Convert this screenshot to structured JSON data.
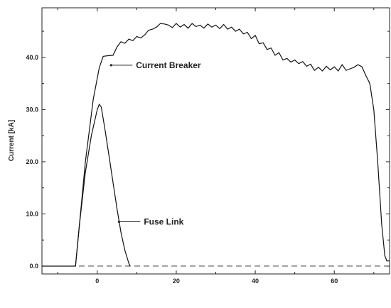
{
  "chart_data": {
    "type": "line",
    "xlabel": "",
    "ylabel": "Current [kA]",
    "xlim": [
      -14,
      74
    ],
    "ylim": [
      -1.5,
      49.5
    ],
    "x_ticks": [
      0,
      20,
      40,
      60
    ],
    "y_ticks": [
      0.0,
      10.0,
      20.0,
      30.0,
      40.0
    ],
    "grid": false,
    "reference_line": {
      "y": 0,
      "style": "dashed"
    },
    "series": [
      {
        "name": "Current Breaker",
        "x": [
          -14,
          -5.5,
          -4.5,
          -3,
          -1,
          0.5,
          1.5,
          2.5,
          4,
          5,
          6,
          7,
          8,
          9,
          10,
          11,
          12,
          13,
          14,
          15,
          16,
          17,
          18,
          19,
          20,
          21,
          22,
          23,
          24,
          25,
          26,
          27,
          28,
          29,
          30,
          31,
          32,
          33,
          34,
          35,
          36,
          37,
          38,
          39,
          40,
          41,
          42,
          43,
          44,
          45,
          46,
          47,
          48,
          49,
          50,
          51,
          52,
          53,
          54,
          55,
          56,
          57,
          58,
          59,
          60,
          61,
          62,
          63,
          64,
          65,
          66,
          67,
          68,
          69,
          70,
          71,
          72,
          72.8,
          73.3,
          74
        ],
        "y": [
          0,
          0,
          8,
          20,
          32,
          38,
          40.2,
          40.3,
          40.4,
          42,
          43,
          42.7,
          43.5,
          43.2,
          44,
          43.7,
          44.3,
          45.2,
          45.4,
          45.8,
          46.5,
          46.4,
          46.2,
          45.7,
          46.5,
          45.8,
          46.3,
          45.6,
          46.5,
          45.9,
          46.2,
          45.6,
          46.4,
          45.8,
          46.2,
          45.5,
          46.3,
          45.4,
          45.8,
          45,
          45.4,
          44.5,
          44.8,
          43.6,
          44.2,
          42.6,
          42.8,
          41.5,
          41.8,
          40.4,
          40.9,
          39.5,
          39.8,
          39.1,
          39.5,
          38.8,
          39.2,
          38.3,
          38.7,
          37.5,
          38.1,
          37.4,
          38.3,
          37.6,
          38.2,
          37.4,
          38.6,
          37.5,
          37.8,
          38.1,
          38.6,
          38.2,
          36.5,
          35,
          30,
          20,
          8,
          2,
          1,
          1
        ],
        "color": "#111111"
      },
      {
        "name": "Fuse Link",
        "x": [
          -5.5,
          -4.5,
          -3,
          -1.5,
          0,
          0.5,
          1,
          2,
          3,
          4,
          5,
          6,
          7,
          8,
          8.3
        ],
        "y": [
          0,
          8,
          18,
          25,
          30,
          31,
          30.5,
          26,
          21,
          16,
          11,
          6.5,
          3,
          0.5,
          0
        ],
        "color": "#111111"
      }
    ],
    "annotations": [
      {
        "text": "Current Breaker",
        "x": 3.5,
        "y": 38.5
      },
      {
        "text": "Fuse Link",
        "x": 5.5,
        "y": 8.5
      }
    ]
  }
}
